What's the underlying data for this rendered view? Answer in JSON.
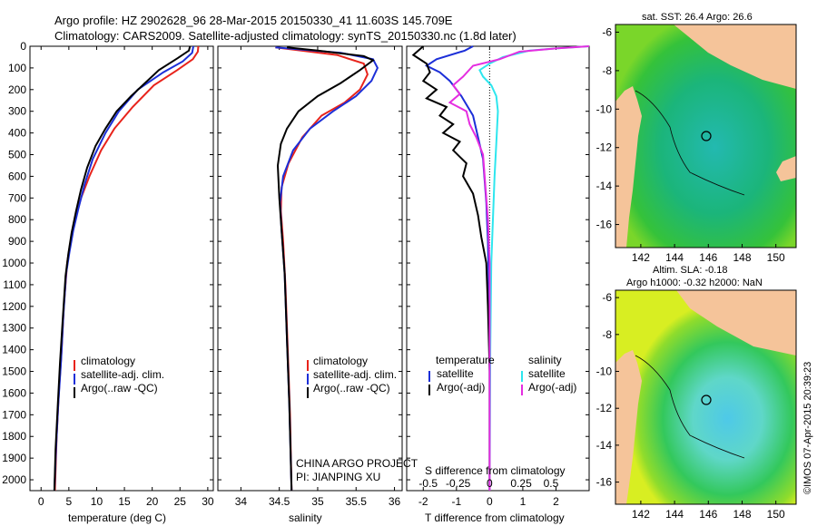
{
  "header": {
    "line1": "Argo profile: HZ 2902628_96 28-Mar-2015 20150330_41 11.603S 145.709E",
    "line2": "Climatology: CARS2009. Satellite-adjusted climatology: synTS_20150330.nc (1.8d later)"
  },
  "colors": {
    "climatology": "#e8231b",
    "satellite": "#1c2fd8",
    "argo": "#000000",
    "sat_salinity": "#2ee6ee",
    "argo_salinity_diff": "#e52de0",
    "land": "#f5c49a"
  },
  "depth_axis": {
    "ticks": [
      0,
      100,
      200,
      300,
      400,
      500,
      600,
      700,
      800,
      900,
      1000,
      1100,
      1200,
      1300,
      1400,
      1500,
      1600,
      1700,
      1800,
      1900,
      2000
    ],
    "ylim": [
      0,
      2050
    ]
  },
  "chart_data": [
    {
      "type": "line",
      "xlabel": "temperature (deg C)",
      "xlim": [
        -2,
        31
      ],
      "xticks": [
        0,
        5,
        10,
        15,
        20,
        25,
        30
      ],
      "ylim": [
        0,
        2050
      ],
      "legend": [
        "climatology",
        "satellite-adj. clim.",
        "Argo(..raw -QC)"
      ],
      "series": [
        {
          "name": "climatology",
          "color": "#e8231b",
          "points": [
            [
              28.3,
              0
            ],
            [
              28.2,
              25
            ],
            [
              27.3,
              60
            ],
            [
              24.5,
              110
            ],
            [
              20.3,
              180
            ],
            [
              16.5,
              280
            ],
            [
              13.2,
              380
            ],
            [
              10.8,
              480
            ],
            [
              8.7,
              600
            ],
            [
              7.2,
              700
            ],
            [
              6.1,
              800
            ],
            [
              5.3,
              900
            ],
            [
              4.7,
              1000
            ],
            [
              4.1,
              1200
            ],
            [
              3.7,
              1400
            ],
            [
              3.2,
              1600
            ],
            [
              2.8,
              1800
            ],
            [
              2.5,
              2050
            ]
          ]
        },
        {
          "name": "satellite-adj. clim.",
          "color": "#1c2fd8",
          "points": [
            [
              27.4,
              0
            ],
            [
              27.2,
              30
            ],
            [
              25.5,
              70
            ],
            [
              22.0,
              120
            ],
            [
              17.4,
              200
            ],
            [
              14.0,
              300
            ],
            [
              11.6,
              400
            ],
            [
              9.3,
              520
            ],
            [
              7.8,
              640
            ],
            [
              6.7,
              750
            ],
            [
              5.8,
              850
            ],
            [
              5.1,
              950
            ],
            [
              4.5,
              1050
            ],
            [
              4.0,
              1250
            ],
            [
              3.6,
              1450
            ],
            [
              3.1,
              1650
            ],
            [
              2.7,
              1850
            ],
            [
              2.4,
              2050
            ]
          ]
        },
        {
          "name": "Argo(..raw -QC)",
          "color": "#000000",
          "points": [
            [
              26.8,
              0
            ],
            [
              26.6,
              20
            ],
            [
              24.6,
              55
            ],
            [
              21.2,
              110
            ],
            [
              18.7,
              170
            ],
            [
              16.2,
              230
            ],
            [
              13.6,
              300
            ],
            [
              11.6,
              380
            ],
            [
              9.8,
              460
            ],
            [
              8.3,
              560
            ],
            [
              7.2,
              660
            ],
            [
              6.3,
              760
            ],
            [
              5.5,
              860
            ],
            [
              4.9,
              960
            ],
            [
              4.4,
              1060
            ],
            [
              3.9,
              1260
            ],
            [
              3.4,
              1460
            ],
            [
              3.0,
              1660
            ],
            [
              2.6,
              1860
            ],
            [
              2.4,
              2050
            ]
          ]
        }
      ]
    },
    {
      "type": "line",
      "xlabel": "salinity",
      "xlim": [
        33.7,
        36.1
      ],
      "xticks": [
        34,
        34.5,
        35,
        35.5,
        36
      ],
      "ylim": [
        0,
        2050
      ],
      "legend": [
        "climatology",
        "satellite-adj. clim.",
        "Argo(..raw -QC)"
      ],
      "series": [
        {
          "name": "climatology",
          "color": "#e8231b",
          "points": [
            [
              34.45,
              5
            ],
            [
              35.25,
              40
            ],
            [
              35.6,
              80
            ],
            [
              35.65,
              130
            ],
            [
              35.55,
              200
            ],
            [
              35.35,
              260
            ],
            [
              35.05,
              320
            ],
            [
              34.8,
              420
            ],
            [
              34.62,
              540
            ],
            [
              34.53,
              650
            ],
            [
              34.52,
              760
            ],
            [
              34.55,
              900
            ],
            [
              34.58,
              1100
            ],
            [
              34.61,
              1400
            ],
            [
              34.64,
              1700
            ],
            [
              34.66,
              2050
            ]
          ]
        },
        {
          "name": "satellite-adj. clim.",
          "color": "#1c2fd8",
          "points": [
            [
              34.45,
              5
            ],
            [
              35.3,
              30
            ],
            [
              35.72,
              60
            ],
            [
              35.78,
              100
            ],
            [
              35.7,
              160
            ],
            [
              35.5,
              230
            ],
            [
              35.2,
              300
            ],
            [
              34.9,
              380
            ],
            [
              34.68,
              480
            ],
            [
              34.55,
              600
            ],
            [
              34.51,
              720
            ],
            [
              34.53,
              850
            ],
            [
              34.57,
              1050
            ],
            [
              34.6,
              1350
            ],
            [
              34.63,
              1650
            ],
            [
              34.66,
              2050
            ]
          ]
        },
        {
          "name": "Argo(..raw -QC)",
          "color": "#000000",
          "points": [
            [
              34.6,
              5
            ],
            [
              35.0,
              20
            ],
            [
              35.6,
              45
            ],
            [
              35.72,
              65
            ],
            [
              35.55,
              110
            ],
            [
              35.3,
              170
            ],
            [
              35.0,
              230
            ],
            [
              34.75,
              300
            ],
            [
              34.6,
              380
            ],
            [
              34.52,
              450
            ],
            [
              34.48,
              550
            ],
            [
              34.5,
              700
            ],
            [
              34.53,
              850
            ],
            [
              34.57,
              1050
            ],
            [
              34.6,
              1350
            ],
            [
              34.63,
              1650
            ],
            [
              34.66,
              2050
            ]
          ]
        }
      ]
    },
    {
      "type": "line",
      "xlabel": "T difference from climatology",
      "xlim": [
        -2.5,
        3
      ],
      "xticks": [
        -2,
        -1,
        0,
        1,
        2
      ],
      "x2label": "S difference from climatology",
      "x2ticks_labels": [
        "-0.5",
        "-0.25",
        "0",
        "0.25",
        "0.5"
      ],
      "x2ticks_T_units": [
        -1.85,
        -0.95,
        0,
        0.95,
        1.85
      ],
      "ylim": [
        0,
        2050
      ],
      "legend": [
        "temperature",
        "satellite",
        "Argo(-adj)",
        "salinity",
        "satellite",
        "Argo(-adj)"
      ],
      "series": [
        {
          "name": "satellite",
          "group": "temperature",
          "color": "#1c2fd8",
          "points": [
            [
              -0.5,
              0
            ],
            [
              -0.75,
              20
            ],
            [
              -1.6,
              60
            ],
            [
              -1.9,
              90
            ],
            [
              -1.5,
              120
            ],
            [
              -1.2,
              160
            ],
            [
              -0.85,
              230
            ],
            [
              -0.5,
              320
            ],
            [
              -0.35,
              420
            ],
            [
              -0.2,
              520
            ],
            [
              -0.15,
              620
            ],
            [
              -0.1,
              720
            ],
            [
              -0.05,
              900
            ],
            [
              0,
              1300
            ],
            [
              0,
              2050
            ]
          ]
        },
        {
          "name": "Argo(-adj)",
          "group": "temperature",
          "color": "#000000",
          "points": [
            [
              -2.0,
              0
            ],
            [
              -2.3,
              40
            ],
            [
              -1.9,
              80
            ],
            [
              -1.8,
              120
            ],
            [
              -2.0,
              160
            ],
            [
              -1.6,
              200
            ],
            [
              -1.9,
              240
            ],
            [
              -1.3,
              280
            ],
            [
              -1.5,
              320
            ],
            [
              -1.1,
              360
            ],
            [
              -1.4,
              400
            ],
            [
              -0.9,
              440
            ],
            [
              -1.1,
              480
            ],
            [
              -0.7,
              540
            ],
            [
              -0.8,
              600
            ],
            [
              -0.5,
              680
            ],
            [
              -0.35,
              780
            ],
            [
              -0.25,
              880
            ],
            [
              -0.1,
              1000
            ],
            [
              -0.05,
              1200
            ],
            [
              0,
              1500
            ],
            [
              0,
              2050
            ]
          ]
        },
        {
          "name": "satellite",
          "group": "salinity",
          "color": "#2ee6ee",
          "points": [
            [
              3.0,
              0
            ],
            [
              2.0,
              10
            ],
            [
              1.2,
              20
            ],
            [
              0.4,
              50
            ],
            [
              0.0,
              80
            ],
            [
              -0.3,
              110
            ],
            [
              -0.2,
              140
            ],
            [
              0.05,
              180
            ],
            [
              0.2,
              230
            ],
            [
              0.25,
              300
            ],
            [
              0.2,
              450
            ],
            [
              0.15,
              600
            ],
            [
              0.1,
              800
            ],
            [
              0.05,
              1000
            ],
            [
              0.02,
              1400
            ],
            [
              0,
              2050
            ]
          ]
        },
        {
          "name": "Argo(-adj)",
          "group": "salinity",
          "color": "#e52de0",
          "points": [
            [
              3.0,
              0
            ],
            [
              2.0,
              10
            ],
            [
              0.9,
              25
            ],
            [
              0.3,
              60
            ],
            [
              -0.5,
              90
            ],
            [
              -0.8,
              140
            ],
            [
              -1.1,
              180
            ],
            [
              -0.9,
              220
            ],
            [
              -1.2,
              260
            ],
            [
              -0.7,
              300
            ],
            [
              -0.6,
              360
            ],
            [
              -0.4,
              420
            ],
            [
              -0.2,
              500
            ],
            [
              -0.15,
              600
            ],
            [
              -0.1,
              700
            ],
            [
              -0.05,
              800
            ],
            [
              0,
              1000
            ],
            [
              0,
              2050
            ]
          ]
        }
      ]
    }
  ],
  "legends": {
    "profile": [
      "climatology",
      "satellite-adj. clim.",
      "Argo(..raw -QC)"
    ],
    "diff_left_title": "temperature",
    "diff_left": [
      "satellite",
      "Argo(-adj)"
    ],
    "diff_right_title": "salinity",
    "diff_right": [
      "satellite",
      "Argo(-adj)"
    ]
  },
  "project": {
    "line1": "CHINA ARGO PROJECT",
    "line2": "PI: JIANPING XU"
  },
  "maps": {
    "sst_title": "sat. SST: 26.4 Argo: 26.6",
    "sla_title1": "Altim. SLA: -0.18",
    "sla_title2": "Argo h1000: -0.32 h2000: NaN",
    "lon_ticks": [
      142,
      144,
      146,
      148,
      150
    ],
    "lat_ticks": [
      -6,
      -8,
      -10,
      -12,
      -14,
      -16
    ],
    "lon_range": [
      140.5,
      151.2
    ],
    "lat_range": [
      -17.2,
      -5.6
    ],
    "argo_position": {
      "lat": -11.603,
      "lon": 145.709
    }
  },
  "credit": "©IMOS 07-Apr-2015 20:39:23"
}
